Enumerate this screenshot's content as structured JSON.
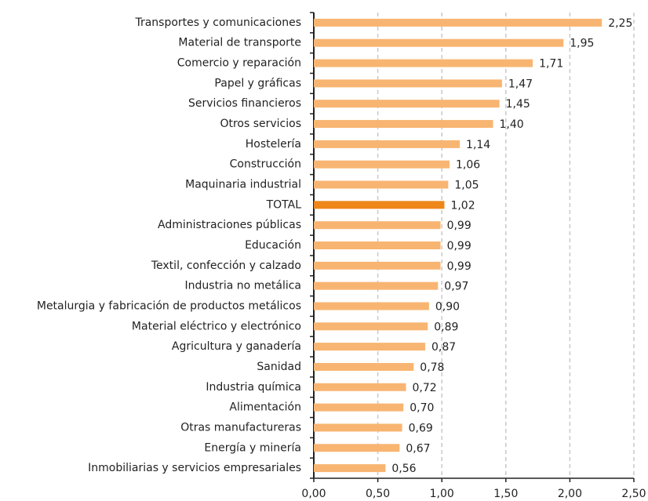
{
  "chart_data": {
    "type": "barh",
    "categories": [
      "Transportes y comunicaciones",
      "Material de transporte",
      "Comercio y reparación",
      "Papel y gráficas",
      "Servicios financieros",
      "Otros servicios",
      "Hostelería",
      "Construcción",
      "Maquinaria industrial",
      "TOTAL",
      "Administraciones públicas",
      "Educación",
      "Textil, confección y calzado",
      "Industria no metálica",
      "Metalurgia y fabricación de productos metálicos",
      "Material eléctrico y electrónico",
      "Agricultura y ganadería",
      "Sanidad",
      "Industria química",
      "Alimentación",
      "Otras manufactureras",
      "Energía y minería",
      "Inmobiliarias y servicios empresariales"
    ],
    "values": [
      2.25,
      1.95,
      1.71,
      1.47,
      1.45,
      1.4,
      1.14,
      1.06,
      1.05,
      1.02,
      0.99,
      0.99,
      0.99,
      0.97,
      0.9,
      0.89,
      0.87,
      0.78,
      0.72,
      0.7,
      0.69,
      0.67,
      0.56
    ],
    "value_labels": [
      "2,25",
      "1,95",
      "1,71",
      "1,47",
      "1,45",
      "1,40",
      "1,14",
      "1,06",
      "1,05",
      "1,02",
      "0,99",
      "0,99",
      "0,99",
      "0,97",
      "0,90",
      "0,89",
      "0,87",
      "0,78",
      "0,72",
      "0,70",
      "0,69",
      "0,67",
      "0,56"
    ],
    "colors": [
      "#f8b572",
      "#f8b572",
      "#f8b572",
      "#f8b572",
      "#f8b572",
      "#f8b572",
      "#f8b572",
      "#f8b572",
      "#f8b572",
      "#ee8619",
      "#f8b572",
      "#f8b572",
      "#f8b572",
      "#f8b572",
      "#f8b572",
      "#f8b572",
      "#f8b572",
      "#f8b572",
      "#f8b572",
      "#f8b572",
      "#f8b572",
      "#f8b572",
      "#f8b572"
    ],
    "xlim": [
      0,
      2.5
    ],
    "xticks": [
      {
        "value": 0,
        "label": "0,00"
      },
      {
        "value": 0.5,
        "label": "0,50"
      },
      {
        "value": 1,
        "label": "1,00"
      },
      {
        "value": 1.5,
        "label": "1,50"
      },
      {
        "value": 2,
        "label": "2,00"
      },
      {
        "value": 2.5,
        "label": "2,50"
      }
    ],
    "grid": true
  }
}
